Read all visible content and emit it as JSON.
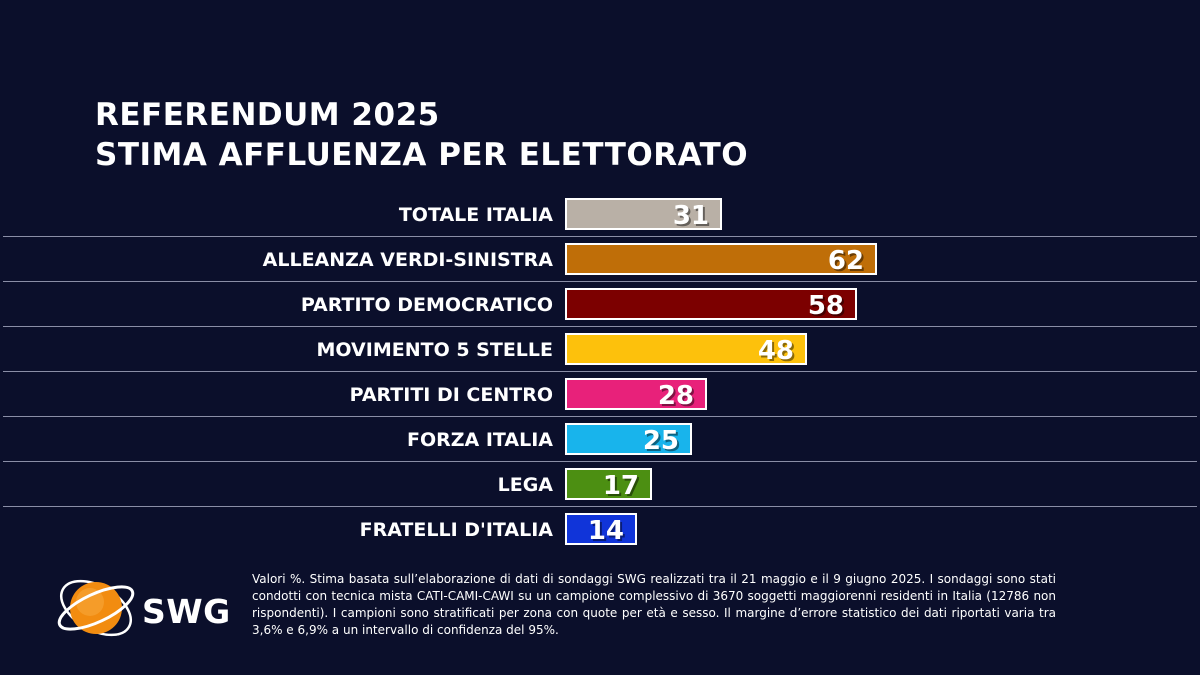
{
  "title_line1": "REFERENDUM 2025",
  "title_line2": "STIMA AFFLUENZA PER ELETTORATO",
  "chart_data": {
    "type": "bar",
    "orientation": "horizontal",
    "title": "REFERENDUM 2025 STIMA AFFLUENZA PER ELETTORATO",
    "unit": "%",
    "categories": [
      "TOTALE ITALIA",
      "ALLEANZA VERDI-SINISTRA",
      "PARTITO DEMOCRATICO",
      "MOVIMENTO 5 STELLE",
      "PARTITI DI CENTRO",
      "FORZA ITALIA",
      "LEGA",
      "FRATELLI D'ITALIA"
    ],
    "values": [
      31,
      62,
      58,
      48,
      28,
      25,
      17,
      14
    ],
    "colors": [
      "#b9b0a6",
      "#bf6e08",
      "#7c0000",
      "#fdc10c",
      "#e8217a",
      "#18b4ec",
      "#4c8f12",
      "#1034d9"
    ],
    "xlim": [
      0,
      100
    ]
  },
  "footer_note": "Valori %. Stima basata sull’elaborazione di dati di sondaggi SWG realizzati tra il 21 maggio e il 9 giugno 2025. I sondaggi sono stati condotti con tecnica mista CATI-CAMI-CAWI su un campione complessivo di 3670 soggetti maggiorenni residenti in Italia (12786 non rispondenti). I campioni sono stratificati per zona con quote per età e sesso. Il margine d’errore statistico dei dati riportati varia tra 3,6% e 6,9% a un intervallo di confidenza del 95%.",
  "logo": {
    "text": "SWG",
    "icon": "swg-globe-icon",
    "color": "#f28c10"
  }
}
